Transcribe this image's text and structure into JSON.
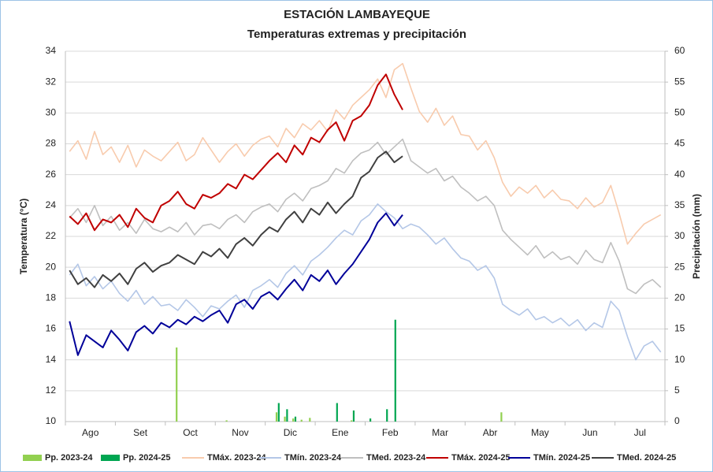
{
  "chart_data": {
    "type": "line",
    "title": "ESTACIÓN LAMBAYEQUE",
    "subtitle": "Temperaturas extremas y precipitación",
    "y_label": "Temperatura (°C)",
    "y2_label": "Precipitación (mm)",
    "ylim": [
      10,
      34
    ],
    "yticks": [
      10,
      12,
      14,
      16,
      18,
      20,
      22,
      24,
      26,
      28,
      30,
      32,
      34
    ],
    "y2lim": [
      0,
      60
    ],
    "y2ticks": [
      0,
      5,
      10,
      15,
      20,
      25,
      30,
      35,
      40,
      45,
      50,
      55,
      60
    ],
    "grid": true,
    "legend": "bottom",
    "categories": [
      null,
      null,
      null,
      "Ago",
      null,
      null,
      null,
      null,
      null,
      "Set",
      null,
      null,
      null,
      null,
      null,
      "Oct",
      null,
      null,
      null,
      null,
      null,
      "Nov",
      null,
      null,
      null,
      null,
      null,
      "Dic",
      null,
      null,
      null,
      null,
      null,
      "Ene",
      null,
      null,
      null,
      null,
      null,
      "Feb",
      null,
      null,
      null,
      null,
      null,
      "Mar",
      null,
      null,
      null,
      null,
      null,
      "Abr",
      null,
      null,
      null,
      null,
      null,
      "May",
      null,
      null,
      null,
      null,
      null,
      "Jun",
      null,
      null,
      null,
      null,
      null,
      "Jul",
      null,
      null
    ],
    "series": [
      {
        "name": "Pp. 2023-24",
        "type": "bar",
        "axis": "y2",
        "color": "#92d050",
        "values": [
          0,
          0,
          0,
          0,
          0,
          0,
          0,
          0,
          0,
          0,
          0,
          0,
          0,
          12,
          0,
          0,
          0,
          0,
          0,
          0.2,
          0,
          0,
          0,
          0,
          0,
          1.5,
          0.8,
          0.5,
          0.3,
          0.6,
          0,
          0,
          0,
          0,
          0.2,
          0,
          0,
          0,
          0,
          0,
          0,
          0,
          0,
          0,
          0,
          0,
          0,
          0,
          0,
          0,
          0,
          0,
          1.5,
          0,
          0,
          0,
          0,
          0,
          0,
          0,
          0,
          0,
          0,
          0,
          0,
          0,
          0,
          0,
          0,
          0,
          0,
          0
        ]
      },
      {
        "name": "Pp. 2024-25",
        "type": "bar",
        "axis": "y2",
        "color": "#00a651",
        "values": [
          0,
          0,
          0,
          0,
          0,
          0,
          0,
          0,
          0,
          0,
          0,
          0,
          0,
          0,
          0,
          0,
          0,
          0,
          0,
          0,
          0,
          0,
          0,
          0,
          0,
          3,
          2,
          0.8,
          0,
          0,
          0,
          0,
          3,
          0,
          1.8,
          0,
          0.5,
          0,
          2,
          16.5,
          0,
          null,
          null,
          null,
          null,
          null,
          null,
          null,
          null,
          null,
          null,
          null,
          null,
          null,
          null,
          null,
          null,
          null,
          null,
          null,
          null,
          null,
          null,
          null,
          null,
          null,
          null,
          null,
          null,
          null,
          null,
          null
        ]
      },
      {
        "name": "TMáx. 2023-24",
        "color": "#f8cbad",
        "width": 1.6,
        "values": [
          27.5,
          28.2,
          27,
          28.8,
          27.3,
          27.8,
          26.8,
          27.9,
          26.5,
          27.6,
          27.2,
          26.9,
          27.5,
          28.1,
          26.9,
          27.3,
          28.4,
          27.6,
          26.8,
          27.5,
          28,
          27.2,
          27.9,
          28.3,
          28.5,
          27.8,
          29,
          28.4,
          29.3,
          28.9,
          29.5,
          28.8,
          30.2,
          29.6,
          30.5,
          31,
          31.5,
          32.2,
          31,
          32.8,
          33.2,
          31.6,
          30.1,
          29.4,
          30.3,
          29.2,
          29.8,
          28.6,
          28.5,
          27.6,
          28.2,
          27.1,
          25.5,
          24.6,
          25.2,
          24.8,
          25.3,
          24.5,
          25,
          24.4,
          24.3,
          23.8,
          24.5,
          23.9,
          24.2,
          25.3,
          23.5,
          21.5,
          22.2,
          22.8,
          23.1,
          23.4
        ]
      },
      {
        "name": "TMín. 2023-24",
        "color": "#b4c7e7",
        "width": 1.6,
        "values": [
          19.5,
          20.2,
          18.8,
          19.4,
          18.6,
          19.1,
          18.3,
          17.8,
          18.5,
          17.6,
          18.1,
          17.5,
          17.6,
          17.2,
          17.9,
          17.4,
          16.8,
          17.5,
          17.3,
          17.8,
          18.2,
          17.4,
          18.5,
          18.8,
          19.2,
          18.7,
          19.6,
          20.1,
          19.5,
          20.4,
          20.8,
          21.3,
          21.9,
          22.4,
          22.1,
          23,
          23.4,
          24.1,
          23.6,
          23.2,
          22.5,
          22.8,
          22.6,
          22.1,
          21.5,
          21.9,
          21.2,
          20.6,
          20.4,
          19.8,
          20.1,
          19.3,
          17.6,
          17.2,
          16.9,
          17.3,
          16.6,
          16.8,
          16.4,
          16.7,
          16.2,
          16.6,
          15.9,
          16.4,
          16.1,
          17.8,
          17.2,
          15.5,
          14,
          14.9,
          15.2,
          14.5
        ]
      },
      {
        "name": "TMed. 2023-24",
        "color": "#bfbfbf",
        "width": 1.6,
        "values": [
          23.2,
          23.8,
          22.9,
          24,
          22.7,
          23.3,
          22.4,
          22.9,
          22.2,
          23.1,
          22.5,
          22.3,
          22.6,
          22.3,
          22.9,
          22.1,
          22.7,
          22.8,
          22.5,
          23.1,
          23.4,
          22.9,
          23.6,
          23.9,
          24.1,
          23.6,
          24.4,
          24.8,
          24.3,
          25.1,
          25.3,
          25.6,
          26.4,
          26.1,
          26.9,
          27.4,
          27.6,
          28.1,
          27.3,
          27.8,
          28.3,
          26.9,
          26.5,
          26.1,
          26.4,
          25.6,
          25.9,
          25.2,
          24.8,
          24.3,
          24.6,
          24,
          22.4,
          21.8,
          21.3,
          20.8,
          21.4,
          20.6,
          21,
          20.5,
          20.7,
          20.2,
          21.1,
          20.5,
          20.3,
          21.6,
          20.4,
          18.6,
          18.3,
          18.9,
          19.2,
          18.7
        ]
      },
      {
        "name": "TMáx. 2024-25",
        "color": "#c00000",
        "width": 2,
        "values": [
          23.3,
          22.8,
          23.5,
          22.4,
          23.1,
          22.9,
          23.4,
          22.6,
          23.8,
          23.2,
          22.9,
          24,
          24.3,
          24.9,
          24.1,
          23.8,
          24.7,
          24.5,
          24.8,
          25.4,
          25.1,
          26,
          25.7,
          26.3,
          26.9,
          27.4,
          26.8,
          27.9,
          27.3,
          28.4,
          28.1,
          28.9,
          29.4,
          28.2,
          29.5,
          29.8,
          30.5,
          31.8,
          32.5,
          31.2,
          30.2,
          null,
          null,
          null,
          null,
          null,
          null,
          null,
          null,
          null,
          null,
          null,
          null,
          null,
          null,
          null,
          null,
          null,
          null,
          null,
          null,
          null,
          null,
          null,
          null,
          null,
          null,
          null,
          null,
          null,
          null,
          null
        ]
      },
      {
        "name": "TMín. 2024-25",
        "color": "#000099",
        "width": 2,
        "values": [
          16.5,
          14.3,
          15.6,
          15.2,
          14.8,
          15.9,
          15.3,
          14.6,
          15.8,
          16.2,
          15.7,
          16.4,
          16.1,
          16.6,
          16.3,
          16.8,
          16.5,
          16.9,
          17.2,
          16.4,
          17.6,
          17.9,
          17.3,
          18.1,
          18.4,
          17.9,
          18.6,
          19.2,
          18.5,
          19.5,
          19.1,
          19.8,
          18.9,
          19.6,
          20.2,
          21,
          21.8,
          22.9,
          23.5,
          22.7,
          23.4,
          null,
          null,
          null,
          null,
          null,
          null,
          null,
          null,
          null,
          null,
          null,
          null,
          null,
          null,
          null,
          null,
          null,
          null,
          null,
          null,
          null,
          null,
          null,
          null,
          null,
          null,
          null,
          null,
          null,
          null,
          null
        ]
      },
      {
        "name": "TMed. 2024-25",
        "color": "#404040",
        "width": 2,
        "values": [
          19.8,
          18.9,
          19.3,
          18.7,
          19.5,
          19.1,
          19.6,
          18.9,
          19.9,
          20.3,
          19.7,
          20.1,
          20.3,
          20.8,
          20.5,
          20.2,
          21,
          20.7,
          21.2,
          20.6,
          21.5,
          21.9,
          21.4,
          22.1,
          22.6,
          22.3,
          23.1,
          23.6,
          22.9,
          23.8,
          23.4,
          24.2,
          23.5,
          24.1,
          24.6,
          25.8,
          26.2,
          27.1,
          27.5,
          26.8,
          27.2,
          null,
          null,
          null,
          null,
          null,
          null,
          null,
          null,
          null,
          null,
          null,
          null,
          null,
          null,
          null,
          null,
          null,
          null,
          null,
          null,
          null,
          null,
          null,
          null,
          null,
          null,
          null,
          null,
          null,
          null,
          null
        ]
      }
    ]
  }
}
